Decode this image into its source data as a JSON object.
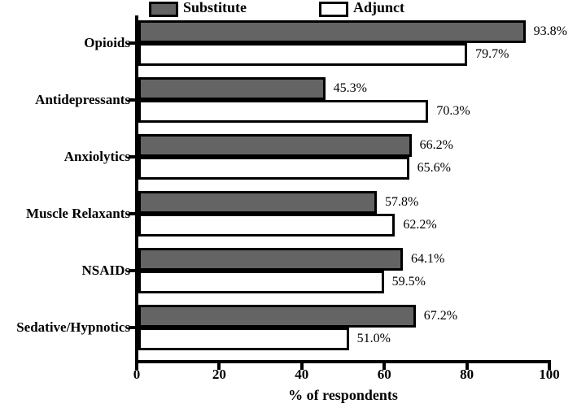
{
  "chart_data": {
    "type": "bar",
    "orientation": "horizontal",
    "title": "",
    "xlabel": "% of respondents",
    "xlim": [
      0,
      100
    ],
    "xticks": [
      0,
      20,
      40,
      60,
      80,
      100
    ],
    "grid": false,
    "legend_position": "top",
    "axis_color": "#000000",
    "categories": [
      "Opioids",
      "Antidepressants",
      "Anxiolytics",
      "Muscle Relaxants",
      "NSAIDs",
      "Sedative/Hypnotics"
    ],
    "series": [
      {
        "name": "Substitute",
        "color": "#646464",
        "values": [
          93.8,
          45.3,
          66.2,
          57.8,
          64.1,
          67.2
        ],
        "labels": [
          "93.8%",
          "45.3%",
          "66.2%",
          "57.8%",
          "64.1%",
          "67.2%"
        ]
      },
      {
        "name": "Adjunct",
        "color": "#ffffff",
        "values": [
          79.7,
          70.3,
          65.6,
          62.2,
          59.5,
          51.0
        ],
        "labels": [
          "79.7%",
          "70.3%",
          "65.6%",
          "62.2%",
          "59.5%",
          "51.0%"
        ]
      }
    ]
  }
}
